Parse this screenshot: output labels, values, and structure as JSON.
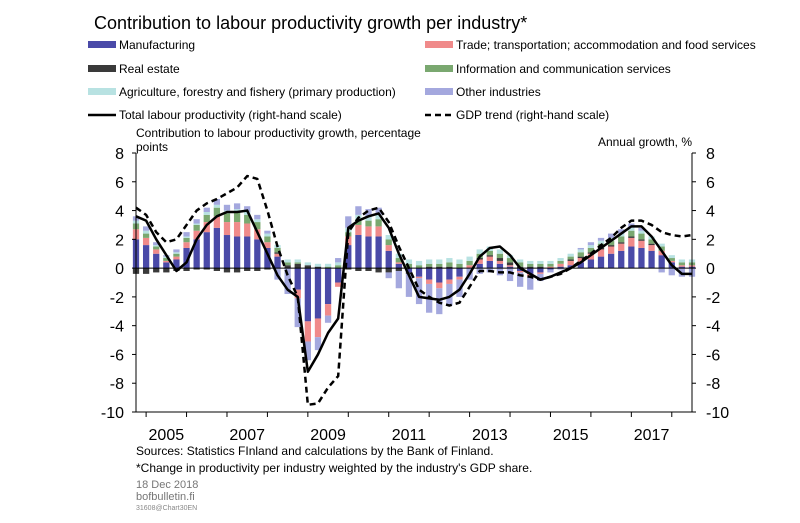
{
  "chart_data": {
    "type": "bar",
    "title": "Contribution to labour productivity growth per industry*",
    "ylabel_left": "Contribution to labour productivity growth, percentage points",
    "ylabel_right": "Annual growth, %",
    "ylim": [
      -10,
      8
    ],
    "y_ticks": [
      8,
      6,
      4,
      2,
      0,
      -2,
      -4,
      -6,
      -8,
      -10
    ],
    "x_tick_labels": [
      "2005",
      "2007",
      "2009",
      "2011",
      "2013",
      "2015",
      "2017"
    ],
    "x_start": "2004Q4",
    "x_end": "2018Q3",
    "periods": [
      "2004Q4",
      "2005Q1",
      "2005Q2",
      "2005Q3",
      "2005Q4",
      "2006Q1",
      "2006Q2",
      "2006Q3",
      "2006Q4",
      "2007Q1",
      "2007Q2",
      "2007Q3",
      "2007Q4",
      "2008Q1",
      "2008Q2",
      "2008Q3",
      "2008Q4",
      "2009Q1",
      "2009Q2",
      "2009Q3",
      "2009Q4",
      "2010Q1",
      "2010Q2",
      "2010Q3",
      "2010Q4",
      "2011Q1",
      "2011Q2",
      "2011Q3",
      "2011Q4",
      "2012Q1",
      "2012Q2",
      "2012Q3",
      "2012Q4",
      "2013Q1",
      "2013Q2",
      "2013Q3",
      "2013Q4",
      "2014Q1",
      "2014Q2",
      "2014Q3",
      "2014Q4",
      "2015Q1",
      "2015Q2",
      "2015Q3",
      "2015Q4",
      "2016Q1",
      "2016Q2",
      "2016Q3",
      "2016Q4",
      "2017Q1",
      "2017Q2",
      "2017Q3",
      "2017Q4",
      "2018Q1",
      "2018Q2",
      "2018Q3"
    ],
    "series": [
      {
        "name": "Manufacturing",
        "kind": "bar",
        "color": "#4a4aa8",
        "values": [
          2.0,
          1.6,
          1.0,
          0.4,
          0.6,
          1.4,
          2.0,
          2.5,
          2.8,
          2.3,
          2.2,
          2.2,
          2.0,
          1.4,
          0.8,
          0.0,
          -1.5,
          -3.7,
          -3.5,
          -2.5,
          -1.0,
          1.6,
          2.3,
          2.2,
          2.2,
          1.2,
          0.3,
          -0.3,
          -0.6,
          -0.8,
          -1.0,
          -0.8,
          -0.6,
          0.0,
          0.3,
          0.5,
          0.3,
          0.1,
          -0.2,
          -0.4,
          -0.3,
          -0.1,
          0.1,
          0.2,
          0.4,
          0.6,
          0.8,
          1.0,
          1.2,
          1.5,
          1.4,
          1.2,
          0.9,
          0.4,
          0.1,
          0.1
        ]
      },
      {
        "name": "Trade; transportation; accommodation and food services",
        "kind": "bar",
        "color": "#f08a8a",
        "values": [
          0.7,
          0.5,
          0.3,
          0.1,
          0.2,
          0.4,
          0.6,
          0.7,
          0.8,
          0.9,
          1.0,
          0.9,
          0.7,
          0.4,
          0.2,
          0.0,
          -0.6,
          -1.4,
          -1.3,
          -0.8,
          -0.3,
          0.6,
          0.7,
          0.7,
          0.7,
          0.4,
          0.1,
          0.0,
          -0.1,
          -0.3,
          -0.4,
          -0.3,
          -0.2,
          0.2,
          0.3,
          0.3,
          0.2,
          0.1,
          -0.1,
          -0.2,
          -0.1,
          0.1,
          0.2,
          0.3,
          0.3,
          0.4,
          0.5,
          0.5,
          0.5,
          0.6,
          0.5,
          0.4,
          0.3,
          0.1,
          0.1,
          0.1
        ]
      },
      {
        "name": "Real estate",
        "kind": "bar",
        "color": "#3a3a3a",
        "values": [
          -0.4,
          -0.4,
          -0.3,
          -0.3,
          -0.2,
          -0.2,
          -0.1,
          -0.1,
          -0.2,
          -0.3,
          -0.3,
          -0.2,
          -0.2,
          -0.1,
          0.1,
          0.2,
          0.3,
          0.2,
          0.1,
          0.0,
          0.0,
          -0.1,
          -0.2,
          -0.2,
          -0.3,
          -0.3,
          -0.2,
          -0.1,
          0.0,
          0.1,
          0.1,
          0.1,
          0.0,
          0.0,
          0.1,
          0.1,
          0.2,
          0.2,
          0.1,
          0.1,
          0.1,
          0.0,
          0.0,
          0.1,
          0.1,
          0.1,
          0.1,
          0.1,
          0.1,
          0.1,
          0.1,
          0.1,
          0.0,
          0.0,
          0.0,
          0.0
        ]
      },
      {
        "name": "Information and communication services",
        "kind": "bar",
        "color": "#7aa870",
        "values": [
          0.4,
          0.3,
          0.2,
          0.2,
          0.2,
          0.3,
          0.4,
          0.5,
          0.6,
          0.6,
          0.7,
          0.6,
          0.5,
          0.4,
          0.3,
          0.2,
          0.1,
          0.0,
          0.0,
          0.1,
          0.2,
          0.3,
          0.4,
          0.4,
          0.5,
          0.4,
          0.3,
          0.3,
          0.2,
          0.2,
          0.2,
          0.3,
          0.3,
          0.3,
          0.3,
          0.3,
          0.3,
          0.3,
          0.3,
          0.2,
          0.2,
          0.2,
          0.2,
          0.2,
          0.3,
          0.3,
          0.3,
          0.3,
          0.4,
          0.4,
          0.4,
          0.3,
          0.3,
          0.2,
          0.2,
          0.2
        ]
      },
      {
        "name": "Agriculture, forestry and fishery (primary production)",
        "kind": "bar",
        "color": "#b8e2e2",
        "values": [
          0.2,
          0.2,
          0.1,
          0.1,
          0.1,
          0.1,
          0.1,
          0.2,
          0.2,
          0.2,
          0.2,
          0.2,
          0.2,
          0.2,
          0.2,
          0.2,
          0.2,
          0.2,
          0.2,
          0.2,
          0.2,
          0.3,
          0.3,
          0.3,
          0.3,
          0.3,
          0.3,
          0.3,
          0.3,
          0.3,
          0.3,
          0.3,
          0.3,
          0.3,
          0.3,
          0.3,
          0.3,
          0.2,
          0.2,
          0.2,
          0.2,
          0.2,
          0.2,
          0.2,
          0.2,
          0.2,
          0.2,
          0.2,
          0.2,
          0.2,
          0.2,
          0.2,
          0.2,
          0.2,
          0.2,
          0.2
        ]
      },
      {
        "name": "Other industries",
        "kind": "bar",
        "color": "#a4a8de",
        "values": [
          0.3,
          0.3,
          0.2,
          0.1,
          0.2,
          0.3,
          0.3,
          0.3,
          0.4,
          0.4,
          0.4,
          0.4,
          0.3,
          0.2,
          -0.8,
          -1.8,
          -2.0,
          -1.3,
          -0.9,
          -0.5,
          0.3,
          0.8,
          0.6,
          0.5,
          0.5,
          -0.4,
          -1.2,
          -1.6,
          -1.8,
          -2.0,
          -1.8,
          -1.5,
          -1.2,
          -0.8,
          -0.4,
          -0.3,
          -0.5,
          -0.9,
          -1.0,
          -0.9,
          -0.5,
          -0.2,
          -0.1,
          0.0,
          0.1,
          0.2,
          0.2,
          0.3,
          0.3,
          0.3,
          0.2,
          0.0,
          -0.3,
          -0.5,
          -0.6,
          -0.6
        ]
      },
      {
        "name": "Total labour productivity (right-hand scale)",
        "kind": "line",
        "style": "solid",
        "color": "#000000",
        "values": [
          3.6,
          3.3,
          2.0,
          0.9,
          -0.2,
          0.4,
          2.0,
          3.0,
          3.6,
          3.9,
          3.9,
          4.0,
          2.5,
          1.0,
          -0.5,
          -1.5,
          -2.0,
          -7.2,
          -6.0,
          -4.5,
          -3.5,
          2.8,
          3.3,
          3.6,
          3.8,
          2.8,
          1.0,
          -0.5,
          -2.0,
          -2.1,
          -2.2,
          -2.0,
          -1.5,
          -0.4,
          0.8,
          1.4,
          1.5,
          0.9,
          0.0,
          -0.4,
          -0.8,
          -0.6,
          -0.3,
          0.0,
          0.4,
          0.9,
          1.4,
          1.9,
          2.4,
          2.9,
          2.9,
          2.2,
          1.2,
          0.2,
          -0.4,
          -0.4
        ]
      },
      {
        "name": "GDP trend (right-hand scale)",
        "kind": "line",
        "style": "dashed",
        "color": "#000000",
        "values": [
          4.2,
          3.7,
          2.5,
          1.8,
          2.0,
          3.0,
          4.0,
          4.5,
          4.8,
          5.2,
          5.6,
          6.4,
          6.2,
          4.0,
          1.5,
          -0.5,
          -2.0,
          -9.5,
          -9.4,
          -8.3,
          -7.5,
          2.5,
          3.5,
          4.0,
          4.2,
          3.2,
          1.5,
          0.0,
          -1.5,
          -2.0,
          -2.4,
          -2.6,
          -2.4,
          -1.3,
          -0.2,
          -0.2,
          -0.3,
          -0.3,
          -0.5,
          -0.6,
          -0.8,
          -0.6,
          -0.4,
          0.0,
          0.5,
          1.0,
          1.6,
          2.1,
          2.8,
          3.3,
          3.3,
          3.0,
          2.5,
          2.3,
          2.2,
          2.3
        ]
      }
    ],
    "legend_placement": "top, two columns",
    "grid": false
  },
  "footer": {
    "sources": "Sources: Statistics FInland and calculations by the Bank of Finland.",
    "note": "*Change in productivity per industry weighted by the industry's GDP share.",
    "date": "18 Dec 2018",
    "site": "bofbulletin.fi",
    "code": "31608@Chart30EN"
  }
}
